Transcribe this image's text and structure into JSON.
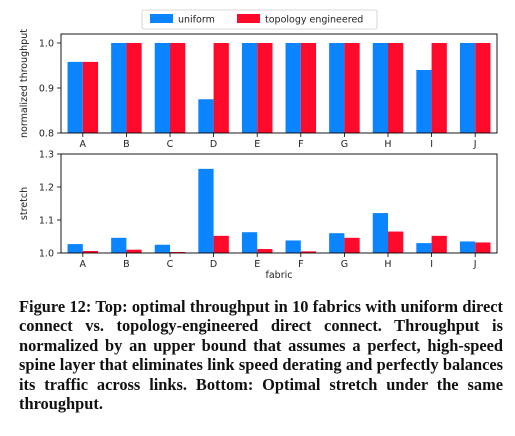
{
  "chart_data": [
    {
      "type": "bar",
      "ylabel": "normalized throughput",
      "xlabel": "",
      "ylim": [
        0.8,
        1.02
      ],
      "yticks": [
        "0.8",
        "0.9",
        "1.0"
      ],
      "categories": [
        "A",
        "B",
        "C",
        "D",
        "E",
        "F",
        "G",
        "H",
        "I",
        "J"
      ],
      "legend_position": "top-center",
      "series": [
        {
          "name": "uniform",
          "color": "#0a84ff",
          "values": [
            0.958,
            1.0,
            1.0,
            0.875,
            1.0,
            1.0,
            1.0,
            1.0,
            0.94,
            1.0
          ]
        },
        {
          "name": "topology engineered",
          "color": "#ff0a2a",
          "values": [
            0.958,
            1.0,
            1.0,
            1.0,
            1.0,
            1.0,
            1.0,
            1.0,
            1.0,
            1.0
          ]
        }
      ]
    },
    {
      "type": "bar",
      "ylabel": "stretch",
      "xlabel": "fabric",
      "ylim": [
        1.0,
        1.3
      ],
      "yticks": [
        "1.0",
        "1.1",
        "1.2",
        "1.3"
      ],
      "categories": [
        "A",
        "B",
        "C",
        "D",
        "E",
        "F",
        "G",
        "H",
        "I",
        "J"
      ],
      "series": [
        {
          "name": "uniform",
          "color": "#0a84ff",
          "values": [
            1.027,
            1.046,
            1.025,
            1.255,
            1.063,
            1.038,
            1.06,
            1.121,
            1.03,
            1.035
          ]
        },
        {
          "name": "topology engineered",
          "color": "#ff0a2a",
          "values": [
            1.006,
            1.01,
            1.003,
            1.052,
            1.012,
            1.005,
            1.046,
            1.065,
            1.052,
            1.032
          ]
        }
      ]
    }
  ],
  "caption": "Figure 12: Top: optimal throughput in 10 fabrics with uniform direct connect vs. topology-engineered direct connect. Throughput is normalized by an upper bound that assumes a perfect, high-speed spine layer that eliminates link speed derating and perfectly balances its traffic across links. Bottom: Optimal stretch under the same throughput."
}
